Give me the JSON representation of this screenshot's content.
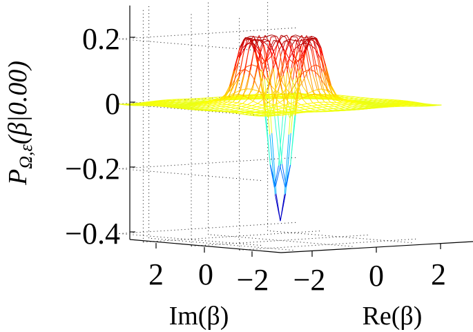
{
  "chart_data": {
    "type": "surface-mesh",
    "title": "",
    "xlabel": "Re(β)",
    "ylabel": "Im(β)",
    "zlabel": "P_{Ω,ε}(β|0.00)",
    "zlabel_parts": {
      "main": "P",
      "sub": "Ω,ε",
      "rest": "(β|0.00)"
    },
    "x_ticks": [
      "−2",
      "0",
      "2"
    ],
    "y_ticks": [
      "2",
      "0",
      "−2"
    ],
    "z_ticks": [
      "0.2",
      "0",
      "−0.2",
      "−0.4"
    ],
    "xlim": [
      -3,
      3
    ],
    "ylim": [
      -3,
      3
    ],
    "zlim": [
      -0.42,
      0.3
    ],
    "grid": true,
    "colormap": "jet",
    "surface": {
      "plateau_height": 0.23,
      "plateau_radius": 1.2,
      "dip_min": -0.36,
      "dip_center": [
        0,
        0
      ]
    }
  }
}
